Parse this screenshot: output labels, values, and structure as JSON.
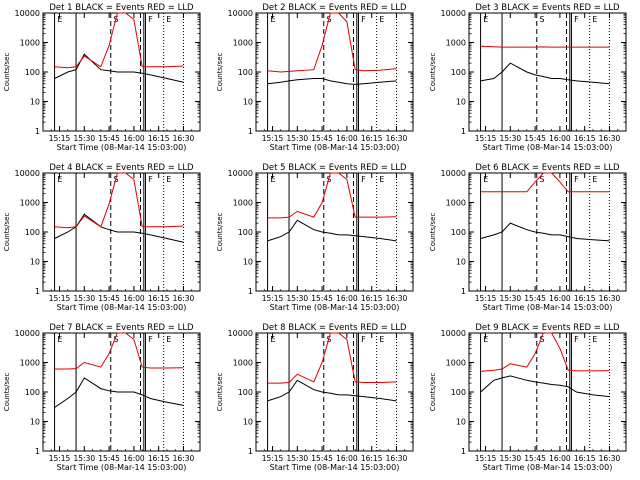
{
  "figure": {
    "ylabel": "Counts/sec",
    "xlabel": "Start Time (08-Mar-14 15:03:00)",
    "ytick_labels": [
      "1",
      "10",
      "100",
      "1000",
      "10000"
    ],
    "xtick_labels": [
      "15:15",
      "15:30",
      "15:45",
      "16:00",
      "16:15",
      "16:30"
    ],
    "flag_labels": [
      "E",
      "S",
      "F",
      "E"
    ],
    "colors": {
      "events": "#000000",
      "lld": "#e00000"
    }
  },
  "chart_data": [
    {
      "type": "line",
      "title": "Det 1 BLACK = Events  RED = LLD",
      "xlabel": "Start Time (08-Mar-14 15:03:00)",
      "ylabel": "Counts/sec",
      "ylim": [
        1,
        10000
      ],
      "yscale": "log",
      "xlim": [
        "15:05",
        "16:40"
      ],
      "x": [
        "15:12",
        "15:20",
        "15:25",
        "15:30",
        "15:40",
        "15:45",
        "15:50",
        "15:55",
        "16:00",
        "16:05",
        "16:10",
        "16:20",
        "16:30"
      ],
      "series": [
        {
          "name": "Events",
          "values": [
            60,
            100,
            120,
            400,
            120,
            110,
            100,
            100,
            100,
            90,
            80,
            60,
            45
          ]
        },
        {
          "name": "LLD",
          "values": [
            150,
            140,
            150,
            350,
            150,
            800,
            10000,
            10000,
            6000,
            150,
            150,
            150,
            160
          ]
        }
      ]
    },
    {
      "type": "line",
      "title": "Det 2 BLACK = Events  RED = LLD",
      "xlabel": "Start Time (08-Mar-14 15:03:00)",
      "ylabel": "Counts/sec",
      "ylim": [
        1,
        10000
      ],
      "yscale": "log",
      "xlim": [
        "15:05",
        "16:40"
      ],
      "x": [
        "15:12",
        "15:20",
        "15:25",
        "15:30",
        "15:40",
        "15:45",
        "15:50",
        "15:55",
        "16:00",
        "16:05",
        "16:10",
        "16:20",
        "16:30"
      ],
      "series": [
        {
          "name": "Events",
          "values": [
            40,
            45,
            50,
            55,
            60,
            60,
            50,
            45,
            40,
            38,
            40,
            45,
            50
          ]
        },
        {
          "name": "LLD",
          "values": [
            110,
            100,
            105,
            110,
            120,
            800,
            10000,
            10000,
            5000,
            120,
            110,
            115,
            130
          ]
        }
      ]
    },
    {
      "type": "line",
      "title": "Det 3 BLACK = Events  RED = LLD",
      "xlabel": "Start Time (08-Mar-14 15:03:00)",
      "ylabel": "Counts/sec",
      "ylim": [
        1,
        10000
      ],
      "yscale": "log",
      "xlim": [
        "15:05",
        "16:40"
      ],
      "x": [
        "15:12",
        "15:20",
        "15:25",
        "15:30",
        "15:40",
        "15:45",
        "15:50",
        "15:55",
        "16:00",
        "16:05",
        "16:10",
        "16:20",
        "16:30"
      ],
      "series": [
        {
          "name": "Events",
          "values": [
            50,
            60,
            100,
            200,
            100,
            80,
            70,
            60,
            60,
            55,
            50,
            45,
            40
          ]
        },
        {
          "name": "LLD",
          "values": [
            750,
            720,
            700,
            700,
            700,
            700,
            710,
            700,
            700,
            700,
            700,
            700,
            700
          ]
        }
      ]
    },
    {
      "type": "line",
      "title": "Det 4 BLACK = Events  RED = LLD",
      "xlabel": "Start Time (08-Mar-14 15:03:00)",
      "ylabel": "Counts/sec",
      "ylim": [
        1,
        10000
      ],
      "yscale": "log",
      "xlim": [
        "15:05",
        "16:40"
      ],
      "x": [
        "15:12",
        "15:20",
        "15:25",
        "15:30",
        "15:40",
        "15:45",
        "15:50",
        "15:55",
        "16:00",
        "16:05",
        "16:10",
        "16:20",
        "16:30"
      ],
      "series": [
        {
          "name": "Events",
          "values": [
            60,
            100,
            150,
            400,
            150,
            120,
            100,
            100,
            100,
            90,
            80,
            60,
            45
          ]
        },
        {
          "name": "LLD",
          "values": [
            150,
            140,
            150,
            350,
            150,
            900,
            10000,
            10000,
            6000,
            150,
            150,
            150,
            160
          ]
        }
      ]
    },
    {
      "type": "line",
      "title": "Det 5 BLACK = Events  RED = LLD",
      "xlabel": "Start Time (08-Mar-14 15:03:00)",
      "ylabel": "Counts/sec",
      "ylim": [
        1,
        10000
      ],
      "yscale": "log",
      "xlim": [
        "15:05",
        "16:40"
      ],
      "x": [
        "15:12",
        "15:20",
        "15:25",
        "15:30",
        "15:40",
        "15:45",
        "15:50",
        "15:55",
        "16:00",
        "16:05",
        "16:10",
        "16:20",
        "16:30"
      ],
      "series": [
        {
          "name": "Events",
          "values": [
            50,
            70,
            100,
            250,
            120,
            100,
            90,
            80,
            80,
            75,
            70,
            60,
            50
          ]
        },
        {
          "name": "LLD",
          "values": [
            300,
            300,
            320,
            500,
            320,
            1000,
            10000,
            10000,
            6000,
            320,
            320,
            320,
            330
          ]
        }
      ]
    },
    {
      "type": "line",
      "title": "Det 6 BLACK = Events  RED = LLD",
      "xlabel": "Start Time (08-Mar-14 15:03:00)",
      "ylabel": "Counts/sec",
      "ylim": [
        1,
        10000
      ],
      "yscale": "log",
      "xlim": [
        "15:05",
        "16:40"
      ],
      "x": [
        "15:12",
        "15:20",
        "15:25",
        "15:30",
        "15:40",
        "15:45",
        "15:50",
        "15:55",
        "16:00",
        "16:05",
        "16:10",
        "16:20",
        "16:30"
      ],
      "series": [
        {
          "name": "Events",
          "values": [
            60,
            80,
            100,
            200,
            120,
            100,
            90,
            80,
            80,
            70,
            60,
            55,
            50
          ]
        },
        {
          "name": "LLD",
          "values": [
            2300,
            2300,
            2300,
            2300,
            2300,
            5000,
            10000,
            10000,
            5000,
            2300,
            2300,
            2300,
            2300
          ]
        }
      ]
    },
    {
      "type": "line",
      "title": "Det 7 BLACK = Events  RED = LLD",
      "xlabel": "Start Time (08-Mar-14 15:03:00)",
      "ylabel": "Counts/sec",
      "ylim": [
        1,
        10000
      ],
      "yscale": "log",
      "xlim": [
        "15:05",
        "16:40"
      ],
      "x": [
        "15:12",
        "15:20",
        "15:25",
        "15:30",
        "15:40",
        "15:45",
        "15:50",
        "15:55",
        "16:00",
        "16:05",
        "16:10",
        "16:20",
        "16:30"
      ],
      "series": [
        {
          "name": "Events",
          "values": [
            30,
            60,
            100,
            300,
            130,
            110,
            100,
            100,
            100,
            80,
            60,
            45,
            35
          ]
        },
        {
          "name": "LLD",
          "values": [
            600,
            600,
            620,
            1000,
            700,
            2000,
            10000,
            10000,
            6000,
            700,
            650,
            650,
            660
          ]
        }
      ]
    },
    {
      "type": "line",
      "title": "Det 8 BLACK = Events  RED = LLD",
      "xlabel": "Start Time (08-Mar-14 15:03:00)",
      "ylabel": "Counts/sec",
      "ylim": [
        1,
        10000
      ],
      "yscale": "log",
      "xlim": [
        "15:05",
        "16:40"
      ],
      "x": [
        "15:12",
        "15:20",
        "15:25",
        "15:30",
        "15:40",
        "15:45",
        "15:50",
        "15:55",
        "16:00",
        "16:05",
        "16:10",
        "16:20",
        "16:30"
      ],
      "series": [
        {
          "name": "Events",
          "values": [
            50,
            70,
            100,
            250,
            120,
            100,
            90,
            80,
            80,
            75,
            70,
            60,
            50
          ]
        },
        {
          "name": "LLD",
          "values": [
            200,
            200,
            210,
            400,
            220,
            1000,
            10000,
            10000,
            6000,
            220,
            210,
            210,
            220
          ]
        }
      ]
    },
    {
      "type": "line",
      "title": "Det 9 BLACK = Events  RED = LLD",
      "xlabel": "Start Time (08-Mar-14 15:03:00)",
      "ylabel": "Counts/sec",
      "ylim": [
        1,
        10000
      ],
      "yscale": "log",
      "xlim": [
        "15:05",
        "16:40"
      ],
      "x": [
        "15:12",
        "15:20",
        "15:25",
        "15:30",
        "15:40",
        "15:45",
        "15:50",
        "15:55",
        "16:00",
        "16:05",
        "16:10",
        "16:20",
        "16:30"
      ],
      "series": [
        {
          "name": "Events",
          "values": [
            100,
            250,
            300,
            350,
            250,
            220,
            200,
            180,
            170,
            150,
            100,
            80,
            70
          ]
        },
        {
          "name": "LLD",
          "values": [
            500,
            550,
            600,
            900,
            700,
            2000,
            10000,
            10000,
            3000,
            550,
            520,
            520,
            530
          ]
        }
      ]
    }
  ]
}
